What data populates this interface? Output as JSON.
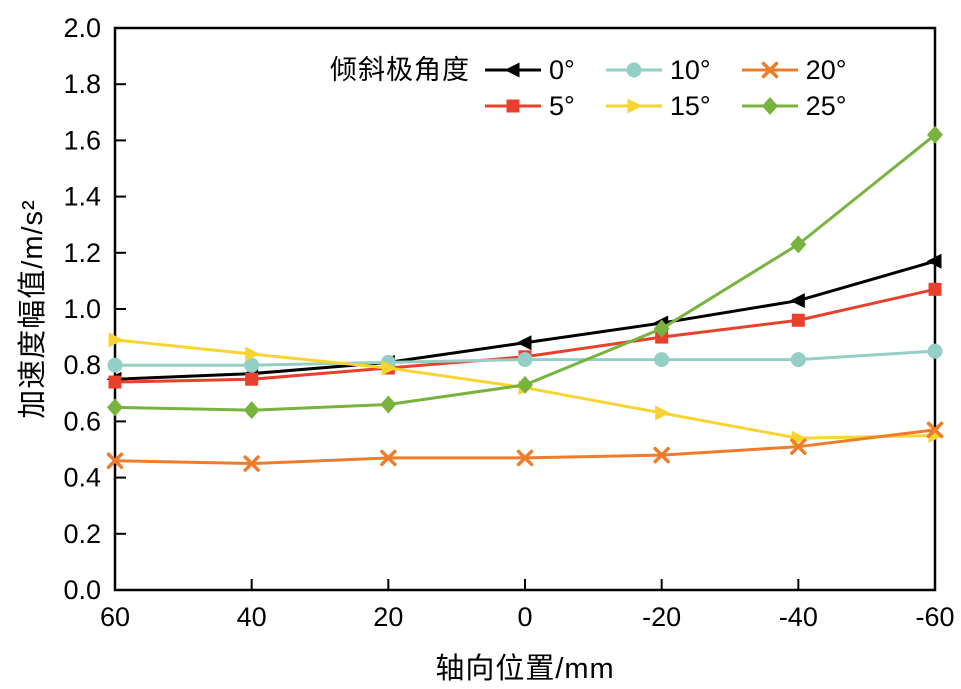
{
  "chart_data": {
    "type": "line",
    "title": "",
    "xlabel": "轴向位置/mm",
    "ylabel": "加速度幅值/m/s²",
    "legend_title": "倾斜极角度",
    "legend_position": "top-center-inside",
    "grid": false,
    "background": "#ffffff",
    "axis_color": "#000000",
    "categories": [
      60,
      40,
      20,
      0,
      -20,
      -40,
      -60
    ],
    "x_tick_labels": [
      "60",
      "40",
      "20",
      "0",
      "-20",
      "-40",
      "-60"
    ],
    "ylim": [
      0.0,
      2.0
    ],
    "y_ticks": [
      0.0,
      0.2,
      0.4,
      0.6,
      0.8,
      1.0,
      1.2,
      1.4,
      1.6,
      1.8,
      2.0
    ],
    "series": [
      {
        "name": "0°",
        "color": "#000000",
        "marker": "triangle-left",
        "values": [
          0.75,
          0.77,
          0.81,
          0.88,
          0.95,
          1.03,
          1.17
        ]
      },
      {
        "name": "5°",
        "color": "#e8402c",
        "marker": "square",
        "values": [
          0.74,
          0.75,
          0.79,
          0.83,
          0.9,
          0.96,
          1.07
        ]
      },
      {
        "name": "10°",
        "color": "#93cfc5",
        "marker": "circle",
        "values": [
          0.8,
          0.8,
          0.81,
          0.82,
          0.82,
          0.82,
          0.85
        ]
      },
      {
        "name": "15°",
        "color": "#f6d532",
        "marker": "triangle-right",
        "values": [
          0.89,
          0.84,
          0.79,
          0.72,
          0.63,
          0.54,
          0.55
        ]
      },
      {
        "name": "20°",
        "color": "#ee7c2b",
        "marker": "x",
        "values": [
          0.46,
          0.45,
          0.47,
          0.47,
          0.48,
          0.51,
          0.57
        ]
      },
      {
        "name": "25°",
        "color": "#78b33e",
        "marker": "diamond",
        "values": [
          0.65,
          0.64,
          0.66,
          0.73,
          0.93,
          1.23,
          1.62
        ]
      }
    ]
  }
}
